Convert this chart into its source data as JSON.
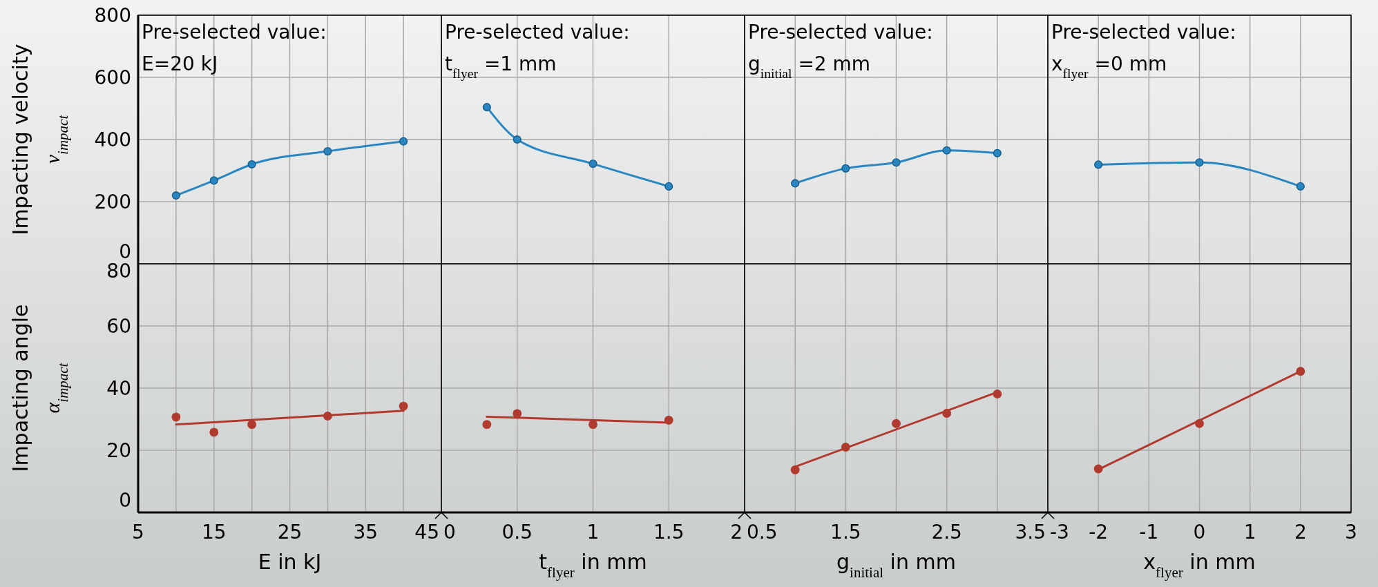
{
  "chart_data": [
    {
      "type": "line",
      "title": "Pre-selected value:",
      "subtitle": "E=20 kJ",
      "ylabel": "Impacting velocity v$_{impact}$",
      "xlim": [
        5,
        45
      ],
      "xticks": [
        5,
        {
          "value": 10,
          "label": null
        },
        15,
        {
          "value": 20,
          "label": null
        },
        25,
        {
          "value": 30,
          "label": null
        },
        35,
        {
          "value": 40,
          "label": null
        },
        45
      ],
      "ylim": [
        0,
        800
      ],
      "yticks": [
        0,
        200,
        400,
        600,
        800
      ],
      "grid": true,
      "tick_labels": "y",
      "marker": "circle",
      "line_style": "solid",
      "series": [
        {
          "color": "#2a86c0",
          "x": [
            10,
            15,
            20,
            30,
            40
          ],
          "values": [
            220,
            268,
            320,
            362,
            394
          ]
        }
      ]
    },
    {
      "type": "line",
      "title": "Pre-selected value:",
      "subtitle": "t$_{flyer}$ =1 mm",
      "xlim": [
        0,
        2
      ],
      "xticks": [
        0,
        0.5,
        1,
        1.5,
        2
      ],
      "ylim": [
        0,
        800
      ],
      "yticks": [
        0,
        200,
        400,
        600,
        800
      ],
      "grid": true,
      "tick_labels": false,
      "marker": "circle",
      "line_style": "solid",
      "series": [
        {
          "color": "#2a86c0",
          "x": [
            0.3,
            0.5,
            1,
            1.5
          ],
          "values": [
            504,
            400,
            322,
            249
          ]
        }
      ]
    },
    {
      "type": "line",
      "title": "Pre-selected value:",
      "subtitle": "g$_{initial}$ =2 mm",
      "xlim": [
        0.5,
        3.5
      ],
      "xticks": [
        0.5,
        {
          "value": 1,
          "label": null
        },
        1.5,
        {
          "value": 2,
          "label": null
        },
        2.5,
        {
          "value": 3,
          "label": null
        },
        3.5
      ],
      "ylim": [
        0,
        800
      ],
      "yticks": [
        0,
        200,
        400,
        600,
        800
      ],
      "grid": true,
      "tick_labels": false,
      "marker": "circle",
      "line_style": "solid",
      "series": [
        {
          "color": "#2a86c0",
          "x": [
            1,
            1.5,
            2,
            2.5,
            3
          ],
          "values": [
            259,
            307,
            326,
            365,
            356
          ]
        }
      ]
    },
    {
      "type": "line",
      "title": "Pre-selected value:",
      "subtitle": "x$_{flyer}$ =0 mm",
      "xlim": [
        -3,
        3
      ],
      "xticks": [
        -3,
        -2,
        -1,
        0,
        1,
        2,
        3
      ],
      "ylim": [
        0,
        800
      ],
      "yticks": [
        0,
        200,
        400,
        600,
        800
      ],
      "grid": true,
      "tick_labels": false,
      "marker": "circle",
      "line_style": "solid",
      "series": [
        {
          "color": "#2a86c0",
          "x": [
            -2,
            0,
            2
          ],
          "values": [
            319,
            326,
            249
          ]
        }
      ]
    },
    {
      "type": "scatter",
      "xlabel": "E in kJ",
      "ylabel": "Impacting angle α$_{impact}$",
      "xlim": [
        5,
        45
      ],
      "xticks": [
        5,
        {
          "value": 10,
          "label": null
        },
        15,
        {
          "value": 20,
          "label": null
        },
        25,
        {
          "value": 30,
          "label": null
        },
        35,
        {
          "value": 40,
          "label": null
        },
        45
      ],
      "ylim": [
        0,
        80
      ],
      "yticks": [
        0,
        20,
        40,
        60,
        80
      ],
      "grid": true,
      "marker": "circle",
      "series": [
        {
          "color": "#b03a2e",
          "x": [
            10,
            15,
            20,
            30,
            40
          ],
          "values": [
            30.7,
            25.8,
            28.3,
            31,
            34.2
          ]
        },
        {
          "type": "line",
          "marker": "none",
          "color": "#b03a2e",
          "x": [
            10,
            40
          ],
          "values": [
            28.3,
            32.7
          ]
        }
      ]
    },
    {
      "type": "scatter",
      "xlabel": "t$_{flyer}$ in mm",
      "xlim": [
        0,
        2
      ],
      "xticks": [
        0,
        0.5,
        1,
        1.5,
        2
      ],
      "ylim": [
        0,
        80
      ],
      "yticks": [
        0,
        20,
        40,
        60,
        80
      ],
      "grid": true,
      "tick_labels": "x",
      "marker": "circle",
      "series": [
        {
          "color": "#b03a2e",
          "x": [
            0.3,
            0.5,
            1,
            1.5
          ],
          "values": [
            28.3,
            31.8,
            28.3,
            29.7
          ]
        },
        {
          "type": "line",
          "marker": "none",
          "color": "#b03a2e",
          "x": [
            0.3,
            1.5
          ],
          "values": [
            30.8,
            28.9
          ]
        }
      ]
    },
    {
      "type": "scatter",
      "xlabel": "g$_{initial}$ in mm",
      "xlim": [
        0.5,
        3.5
      ],
      "xticks": [
        0.5,
        {
          "value": 1,
          "label": null
        },
        1.5,
        {
          "value": 2,
          "label": null
        },
        2.5,
        {
          "value": 3,
          "label": null
        },
        3.5
      ],
      "ylim": [
        0,
        80
      ],
      "yticks": [
        0,
        20,
        40,
        60,
        80
      ],
      "grid": true,
      "tick_labels": "x",
      "marker": "circle",
      "series": [
        {
          "color": "#b03a2e",
          "x": [
            1,
            1.5,
            2,
            2.5,
            3
          ],
          "values": [
            13.7,
            21,
            28.6,
            31.9,
            38.1
          ]
        },
        {
          "type": "line",
          "marker": "none",
          "color": "#b03a2e",
          "x": [
            1,
            3
          ],
          "values": [
            14.7,
            38.7
          ]
        }
      ]
    },
    {
      "type": "scatter",
      "xlabel": "x$_{flyer}$ in mm",
      "xlim": [
        -3,
        3
      ],
      "xticks": [
        -3,
        -2,
        -1,
        0,
        1,
        2,
        3
      ],
      "ylim": [
        0,
        80
      ],
      "yticks": [
        0,
        20,
        40,
        60,
        80
      ],
      "grid": true,
      "tick_labels": "x",
      "marker": "circle",
      "series": [
        {
          "color": "#b03a2e",
          "x": [
            -2,
            0,
            2
          ],
          "values": [
            14,
            28.6,
            45.4
          ]
        },
        {
          "type": "line",
          "marker": "none",
          "color": "#b03a2e",
          "x": [
            -2,
            2
          ],
          "values": [
            13.8,
            45.4
          ]
        }
      ]
    }
  ]
}
